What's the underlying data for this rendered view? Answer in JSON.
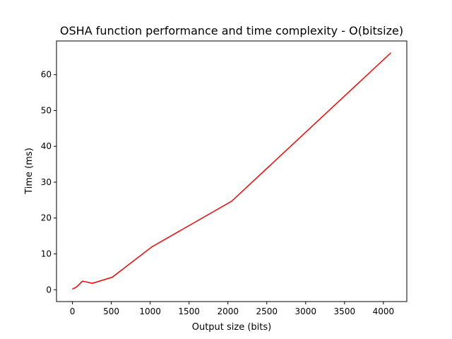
{
  "chart_data": {
    "type": "line",
    "title": "OSHA function performance and time complexity - O(bitsize)",
    "xlabel": "Output size (bits)",
    "ylabel": "Time (ms)",
    "xlim": [
      -205,
      4301
    ],
    "ylim": [
      -3.3,
      69.4
    ],
    "xticks": [
      0,
      500,
      1000,
      1500,
      2000,
      2500,
      3000,
      3500,
      4000
    ],
    "yticks": [
      0,
      10,
      20,
      30,
      40,
      50,
      60
    ],
    "grid": false,
    "series": [
      {
        "color": "#ff0000",
        "x": [
          1,
          2,
          4,
          8,
          16,
          32,
          64,
          128,
          256,
          512,
          1024,
          2048,
          4096
        ],
        "y": [
          0.1,
          0.15,
          0.2,
          0.3,
          0.4,
          0.5,
          1.0,
          2.4,
          1.8,
          3.5,
          12.0,
          24.7,
          66.1
        ]
      }
    ]
  }
}
